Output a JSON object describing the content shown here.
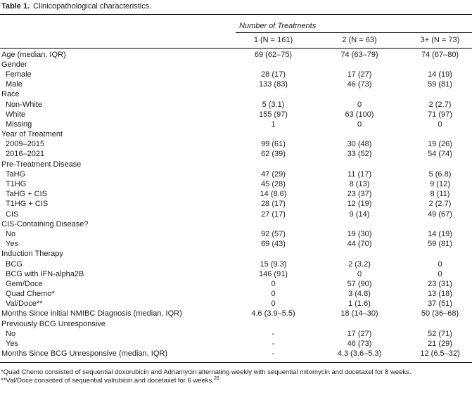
{
  "title": {
    "label": "Table 1.",
    "caption": "Clinicopathological characteristics."
  },
  "table": {
    "spanner": "Number of Treatments",
    "columns": [
      "1 (N = 161)",
      "2 (N = 63)",
      "3+ (N = 73)"
    ],
    "rows": [
      {
        "label": "Age (median, IQR)",
        "indent": false,
        "values": [
          "69 (62–75)",
          "74 (63–79)",
          "74 (67–80)"
        ]
      },
      {
        "label": "Gender",
        "indent": false,
        "values": [
          "",
          "",
          ""
        ]
      },
      {
        "label": "Female",
        "indent": true,
        "values": [
          "28 (17)",
          "17 (27)",
          "14 (19)"
        ]
      },
      {
        "label": "Male",
        "indent": true,
        "values": [
          "133 (83)",
          "46 (73)",
          "59 (81)"
        ]
      },
      {
        "label": "Race",
        "indent": false,
        "values": [
          "",
          "",
          ""
        ]
      },
      {
        "label": "Non-White",
        "indent": true,
        "values": [
          "5 (3.1)",
          "0",
          "2 (2.7)"
        ]
      },
      {
        "label": "White",
        "indent": true,
        "values": [
          "155 (97)",
          "63 (100)",
          "71 (97)"
        ]
      },
      {
        "label": "Missing",
        "indent": true,
        "values": [
          "1",
          "0",
          "0"
        ]
      },
      {
        "label": "Year of Treatment",
        "indent": false,
        "values": [
          "",
          "",
          ""
        ]
      },
      {
        "label": "2009–2015",
        "indent": true,
        "values": [
          "99 (61)",
          "30 (48)",
          "19 (26)"
        ]
      },
      {
        "label": "2016–2021",
        "indent": true,
        "values": [
          "62 (39)",
          "33 (52)",
          "54 (74)"
        ]
      },
      {
        "label": "Pre-Treatment Disease",
        "indent": false,
        "values": [
          "",
          "",
          ""
        ]
      },
      {
        "label": "TaHG",
        "indent": true,
        "values": [
          "47 (29)",
          "11 (17)",
          "5 (6.8)"
        ]
      },
      {
        "label": "T1HG",
        "indent": true,
        "values": [
          "45 (28)",
          "8 (13)",
          "9 (12)"
        ]
      },
      {
        "label": "TaHG + CIS",
        "indent": true,
        "values": [
          "14 (8.6)",
          "23 (37)",
          "8 (11)"
        ]
      },
      {
        "label": "T1HG + CIS",
        "indent": true,
        "values": [
          "28 (17)",
          "12 (19)",
          "2 (2.7)"
        ]
      },
      {
        "label": "CIS",
        "indent": true,
        "values": [
          "27 (17)",
          "9 (14)",
          "49 (67)"
        ]
      },
      {
        "label": "CIS-Containing Disease?",
        "indent": false,
        "values": [
          "",
          "",
          ""
        ]
      },
      {
        "label": "No",
        "indent": true,
        "values": [
          "92 (57)",
          "19 (30)",
          "14 (19)"
        ]
      },
      {
        "label": "Yes",
        "indent": true,
        "values": [
          "69 (43)",
          "44 (70)",
          "59 (81)"
        ]
      },
      {
        "label": "Induction Therapy",
        "indent": false,
        "values": [
          "",
          "",
          ""
        ]
      },
      {
        "label": "BCG",
        "indent": true,
        "values": [
          "15 (9.3)",
          "2 (3.2)",
          "0"
        ]
      },
      {
        "label": "BCG with IFN-alpha2B",
        "indent": true,
        "values": [
          "146 (91)",
          "0",
          "0"
        ]
      },
      {
        "label": "Gem/Doce",
        "indent": true,
        "values": [
          "0",
          "57 (90)",
          "23 (31)"
        ]
      },
      {
        "label": "Quad Chemo*",
        "indent": true,
        "values": [
          "0",
          "3 (4.8)",
          "13 (18)"
        ]
      },
      {
        "label": "Val/Doce**",
        "indent": true,
        "values": [
          "0",
          "1 (1.6)",
          "37 (51)"
        ]
      },
      {
        "label": "Months Since initial NMIBC Diagnosis (median, IQR)",
        "indent": false,
        "values": [
          "4.6 (3.9–5.5)",
          "18 (14–30)",
          "50 (36–68)"
        ]
      },
      {
        "label": "Previously BCG Unresponsive",
        "indent": false,
        "values": [
          "",
          "",
          ""
        ]
      },
      {
        "label": "No",
        "indent": true,
        "values": [
          "-",
          "17 (27)",
          "52 (71)"
        ]
      },
      {
        "label": "Yes",
        "indent": true,
        "values": [
          "-",
          "46 (73)",
          "21 (29)"
        ]
      },
      {
        "label": "Months Since BCG Unresponsive (median, IQR)",
        "indent": false,
        "values": [
          "-",
          "4.3 (3.6–5.3)",
          "12 (6.5–32)"
        ]
      }
    ],
    "footnotes": [
      {
        "text": "*Quad Chemo consisted of sequential doxorubicin and Adriamycin alternating weekly with sequential mitomycin and docetaxel for 8 weeks.",
        "sup": ""
      },
      {
        "text": "**Val/Doce consisted of sequential valrubicin and docetaxel for 6 weeks.",
        "sup": "26"
      }
    ]
  },
  "colors": {
    "background": "#ffffff",
    "text": "#1c1c1c",
    "rule": "#000000"
  }
}
